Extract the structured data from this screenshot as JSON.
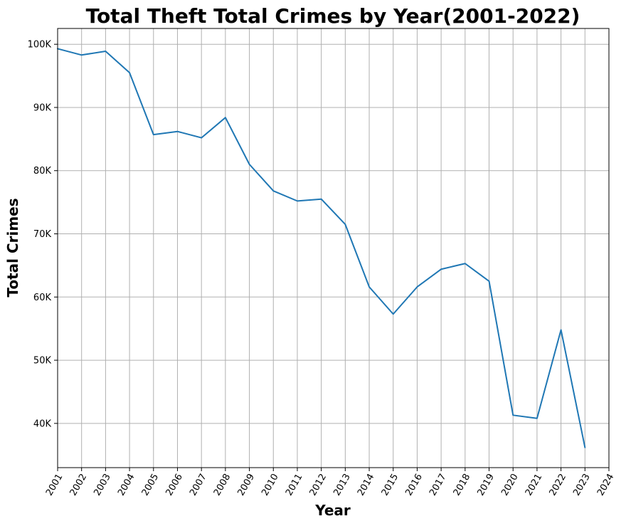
{
  "chart_data": {
    "type": "line",
    "title": "Total Theft Total Crimes by Year(2001-2022)",
    "xlabel": "Year",
    "ylabel": "Total Crimes",
    "xlim": [
      2001,
      2024
    ],
    "ylim": [
      33000,
      102500
    ],
    "grid": true,
    "x_ticks": [
      "2001",
      "2002",
      "2003",
      "2004",
      "2005",
      "2006",
      "2007",
      "2008",
      "2009",
      "2010",
      "2011",
      "2012",
      "2013",
      "2014",
      "2015",
      "2016",
      "2017",
      "2018",
      "2019",
      "2020",
      "2021",
      "2022",
      "2023",
      "2024"
    ],
    "y_ticks": [
      {
        "value": 40000,
        "label": "40K"
      },
      {
        "value": 50000,
        "label": "50K"
      },
      {
        "value": 60000,
        "label": "60K"
      },
      {
        "value": 70000,
        "label": "70K"
      },
      {
        "value": 80000,
        "label": "80K"
      },
      {
        "value": 90000,
        "label": "90K"
      },
      {
        "value": 100000,
        "label": "100K"
      }
    ],
    "series": [
      {
        "color": "#1f77b4",
        "x": [
          2001,
          2002,
          2003,
          2004,
          2005,
          2006,
          2007,
          2008,
          2009,
          2010,
          2011,
          2012,
          2013,
          2014,
          2015,
          2016,
          2017,
          2018,
          2019,
          2020,
          2021,
          2022,
          2023
        ],
        "values": [
          99300,
          98300,
          98900,
          95500,
          85700,
          86200,
          85200,
          88400,
          81000,
          76800,
          75200,
          75500,
          71500,
          61600,
          57300,
          61600,
          64400,
          65300,
          62500,
          41300,
          40800,
          54800,
          36200
        ]
      }
    ]
  }
}
